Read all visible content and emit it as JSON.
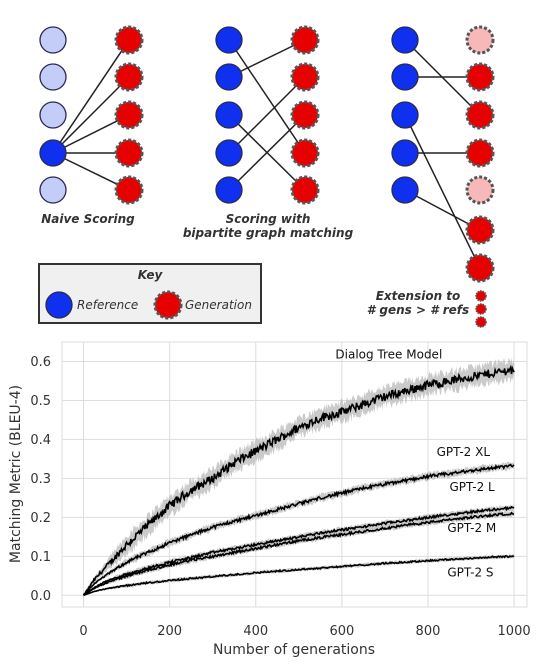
{
  "diagram": {
    "captions": {
      "naive": "Naive Scoring",
      "bipartite_line1": "Scoring with",
      "bipartite_line2": "bipartite graph matching",
      "extension_line1": "Extension to",
      "extension_line2": "# gens > # refs"
    },
    "key": {
      "title": "Key",
      "reference_label": "Reference",
      "generation_label": "Generation"
    },
    "colors": {
      "reference": "#1030f0",
      "reference_light": "#c4ccf8",
      "generation": "#e60000",
      "generation_light": "#f6b8b8",
      "key_background": "#f0f0f0"
    }
  },
  "chart_data": {
    "type": "line",
    "title": "",
    "xlabel": "Number of generations",
    "ylabel": "Matching Metric (BLEU-4)",
    "xlim": [
      -50,
      1030
    ],
    "ylim": [
      -0.03,
      0.65
    ],
    "xticks": [
      0,
      200,
      400,
      600,
      800,
      1000
    ],
    "yticks": [
      0.0,
      0.1,
      0.2,
      0.3,
      0.4,
      0.5,
      0.6
    ],
    "grid": true,
    "legend": "none",
    "x": [
      0,
      25,
      50,
      100,
      150,
      200,
      250,
      300,
      350,
      400,
      450,
      500,
      550,
      600,
      650,
      700,
      750,
      800,
      850,
      900,
      950,
      1000
    ],
    "series": [
      {
        "name": "Dialog Tree Model",
        "values": [
          0.0,
          0.04,
          0.07,
          0.13,
          0.18,
          0.23,
          0.27,
          0.3,
          0.34,
          0.37,
          0.4,
          0.43,
          0.455,
          0.47,
          0.49,
          0.51,
          0.525,
          0.54,
          0.55,
          0.56,
          0.57,
          0.58
        ]
      },
      {
        "name": "GPT-2 XL",
        "values": [
          0.0,
          0.03,
          0.05,
          0.085,
          0.11,
          0.135,
          0.155,
          0.175,
          0.19,
          0.205,
          0.22,
          0.235,
          0.25,
          0.262,
          0.275,
          0.285,
          0.295,
          0.305,
          0.312,
          0.32,
          0.327,
          0.333
        ]
      },
      {
        "name": "GPT-2 L",
        "values": [
          0.0,
          0.02,
          0.035,
          0.055,
          0.07,
          0.085,
          0.097,
          0.11,
          0.12,
          0.13,
          0.14,
          0.15,
          0.16,
          0.168,
          0.176,
          0.185,
          0.192,
          0.2,
          0.207,
          0.214,
          0.22,
          0.225
        ]
      },
      {
        "name": "GPT-2 M",
        "values": [
          0.0,
          0.018,
          0.03,
          0.05,
          0.065,
          0.078,
          0.09,
          0.1,
          0.11,
          0.12,
          0.13,
          0.14,
          0.148,
          0.156,
          0.164,
          0.172,
          0.18,
          0.187,
          0.194,
          0.2,
          0.206,
          0.21
        ]
      },
      {
        "name": "GPT-2 S",
        "values": [
          0.0,
          0.01,
          0.016,
          0.025,
          0.032,
          0.038,
          0.043,
          0.048,
          0.053,
          0.058,
          0.062,
          0.066,
          0.07,
          0.074,
          0.078,
          0.082,
          0.085,
          0.089,
          0.092,
          0.095,
          0.098,
          0.1
        ]
      }
    ],
    "labels": [
      {
        "text": "Dialog Tree Model",
        "x": 585,
        "y": 0.608
      },
      {
        "text": "GPT-2 XL",
        "x": 820,
        "y": 0.358
      },
      {
        "text": "GPT-2 L",
        "x": 850,
        "y": 0.268
      },
      {
        "text": "GPT-2 M",
        "x": 845,
        "y": 0.163
      },
      {
        "text": "GPT-2 S",
        "x": 845,
        "y": 0.048
      }
    ]
  }
}
